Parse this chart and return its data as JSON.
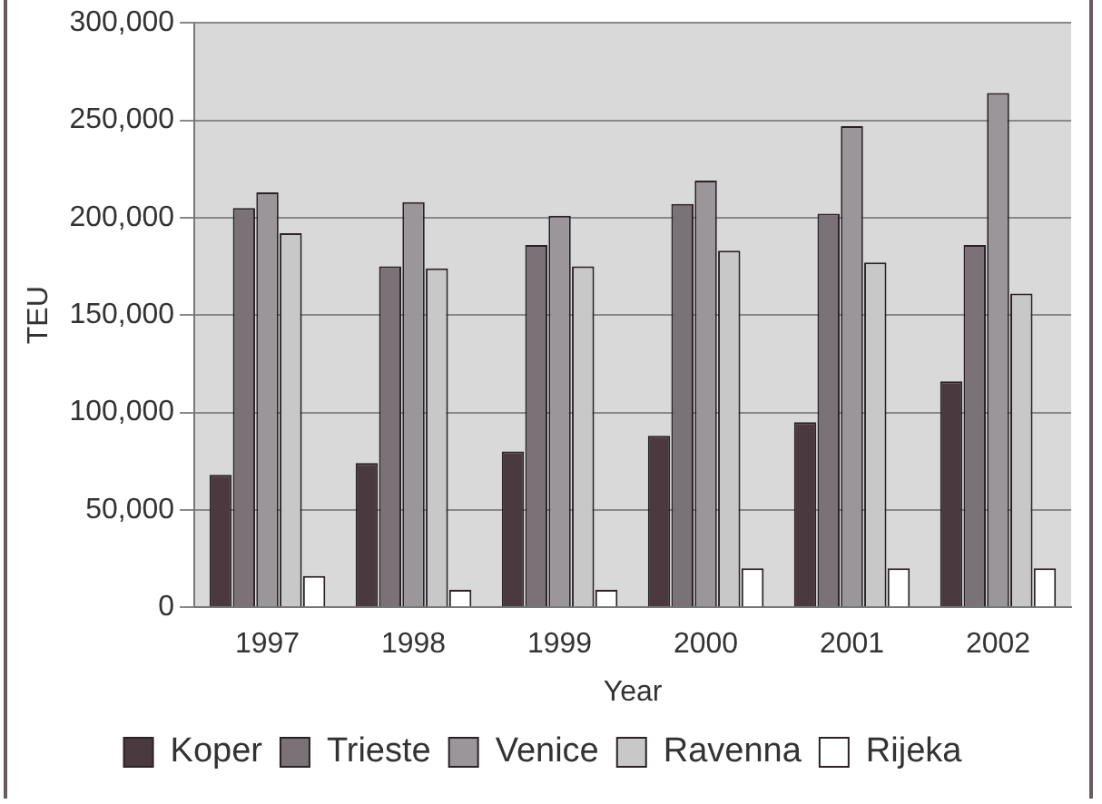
{
  "chart_data": {
    "type": "bar",
    "xlabel": "Year",
    "ylabel": "TEU",
    "categories": [
      "1997",
      "1998",
      "1999",
      "2000",
      "2001",
      "2002"
    ],
    "series": [
      {
        "name": "Koper",
        "color": "#4a3a40",
        "values": [
          68000,
          74000,
          80000,
          88000,
          95000,
          116000
        ]
      },
      {
        "name": "Trieste",
        "color": "#7a7276",
        "values": [
          205000,
          175000,
          186000,
          207000,
          202000,
          186000
        ]
      },
      {
        "name": "Venice",
        "color": "#9a969a",
        "values": [
          213000,
          208000,
          201000,
          219000,
          247000,
          264000
        ]
      },
      {
        "name": "Ravenna",
        "color": "#c8c8c8",
        "values": [
          192000,
          174000,
          175000,
          183000,
          177000,
          161000
        ]
      },
      {
        "name": "Rijeka",
        "color": "#ffffff",
        "values": [
          16000,
          9000,
          9000,
          20000,
          20000,
          20000
        ]
      }
    ],
    "ylim": [
      0,
      300000
    ],
    "yticks": [
      0,
      {
        "value": 50000,
        "label": "50,000"
      },
      {
        "value": 100000,
        "label": "100,000"
      },
      {
        "value": 150000,
        "label": "150,000"
      },
      {
        "value": 200000,
        "label": "200,000"
      },
      {
        "value": 250000,
        "label": "250,000"
      },
      {
        "value": 300000,
        "label": "300,000"
      }
    ],
    "grid": "y",
    "legend": "bottom"
  }
}
